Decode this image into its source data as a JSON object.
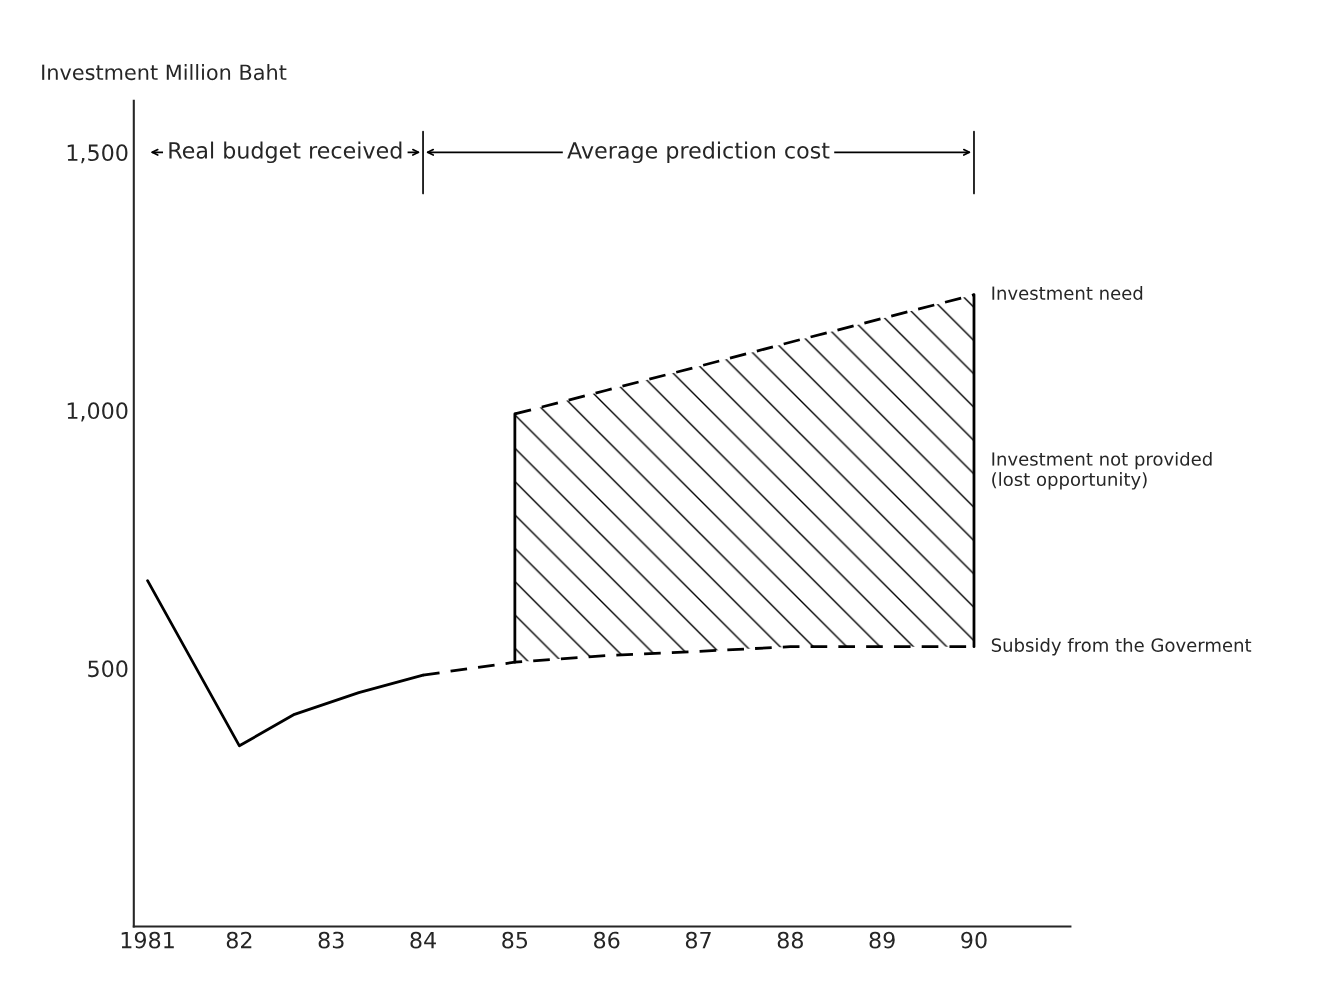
{
  "chart_data": {
    "type": "line",
    "ylabel": "Investment Million Baht",
    "xlim": [
      1980.85,
      1991.05
    ],
    "ylim": [
      0,
      1600
    ],
    "xticks": [
      {
        "value": 1981,
        "label": "1981"
      },
      {
        "value": 1982,
        "label": "82"
      },
      {
        "value": 1983,
        "label": "83"
      },
      {
        "value": 1984,
        "label": "84"
      },
      {
        "value": 1985,
        "label": "85"
      },
      {
        "value": 1986,
        "label": "86"
      },
      {
        "value": 1987,
        "label": "87"
      },
      {
        "value": 1988,
        "label": "88"
      },
      {
        "value": 1989,
        "label": "89"
      },
      {
        "value": 1990,
        "label": "90"
      }
    ],
    "yticks": [
      500,
      {
        "value": 1000,
        "label": "1,000"
      },
      {
        "value": 1500,
        "label": "1,500"
      }
    ],
    "grid": false,
    "legend": false,
    "series": [
      {
        "color": "#000000",
        "line_style": "solid",
        "x": [
          1981,
          1982,
          1982.6,
          1983.3,
          1984
        ],
        "values": [
          670,
          350,
          411,
          453,
          487
        ]
      },
      {
        "color": "#000000",
        "line_style": "dashed",
        "x": [
          1984,
          1985,
          1986,
          1987,
          1988,
          1989,
          1990
        ],
        "values": [
          487,
          512,
          525,
          533,
          542,
          542,
          542
        ]
      },
      {
        "color": "#000000",
        "line_style": "dashed",
        "x": [
          1985,
          1986,
          1987,
          1988,
          1989,
          1990
        ],
        "values": [
          993,
          1039,
          1085,
          1132,
          1178,
          1224
        ],
        "lower": [
          512,
          525,
          533,
          542,
          542,
          542
        ],
        "upper": [
          993,
          1039,
          1085,
          1132,
          1178,
          1224
        ]
      },
      {
        "color": "#000000",
        "line_style": "solid",
        "x": [
          1985,
          1985
        ],
        "values": [
          512,
          993
        ]
      },
      {
        "color": "#000000",
        "line_style": "solid",
        "x": [
          1990,
          1990
        ],
        "values": [
          542,
          1224
        ]
      }
    ],
    "annotations": [
      "Real budget received",
      "Average prediction cost",
      "Investment need",
      "Investment not provided (lost opportunity)",
      "Subsidy from the Goverment"
    ]
  }
}
